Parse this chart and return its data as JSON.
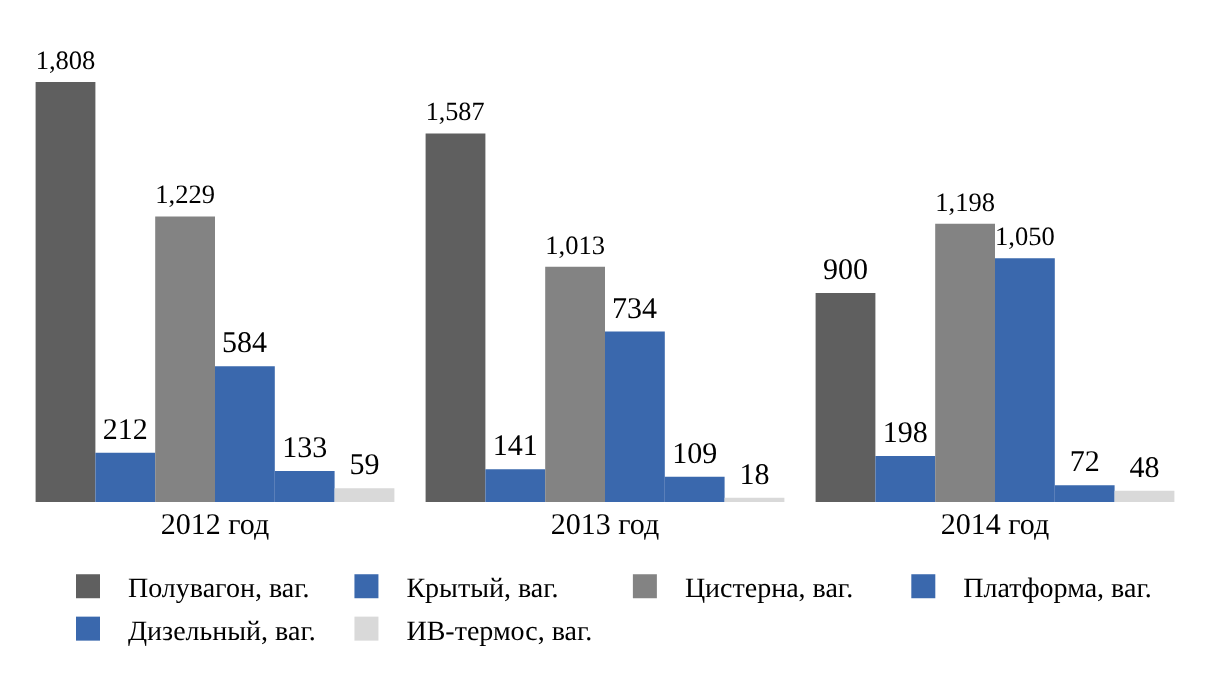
{
  "chart_data": {
    "type": "bar",
    "categories": [
      "2012 год",
      "2013 год",
      "2014 год"
    ],
    "legend": "bottom",
    "series": [
      {
        "name": "Полувагон, ваг.",
        "color": "#5f5f5f",
        "values": [
          1808,
          1587,
          900
        ],
        "value_labels": [
          "1,808",
          "1,587",
          "900"
        ]
      },
      {
        "name": "Крытый, ваг.",
        "color": "#3a68ad",
        "values": [
          212,
          141,
          198
        ],
        "value_labels": [
          "212",
          "141",
          "198"
        ]
      },
      {
        "name": "Цистерна, ваг.",
        "color": "#838383",
        "values": [
          1229,
          1013,
          1198
        ],
        "value_labels": [
          "1,229",
          "1,013",
          "1,198"
        ]
      },
      {
        "name": "Платформа, ваг.",
        "color": "#3a68ad",
        "values": [
          584,
          734,
          1050
        ],
        "value_labels": [
          "584",
          "734",
          "1,050"
        ]
      },
      {
        "name": "Дизельный, ваг.",
        "color": "#3a68ad",
        "values": [
          133,
          109,
          72
        ],
        "value_labels": [
          "133",
          "109",
          "72"
        ]
      },
      {
        "name": "ИВ-термос, ваг.",
        "color": "#d9d9d9",
        "values": [
          59,
          18,
          48
        ],
        "value_labels": [
          "59",
          "18",
          "48"
        ]
      }
    ]
  }
}
